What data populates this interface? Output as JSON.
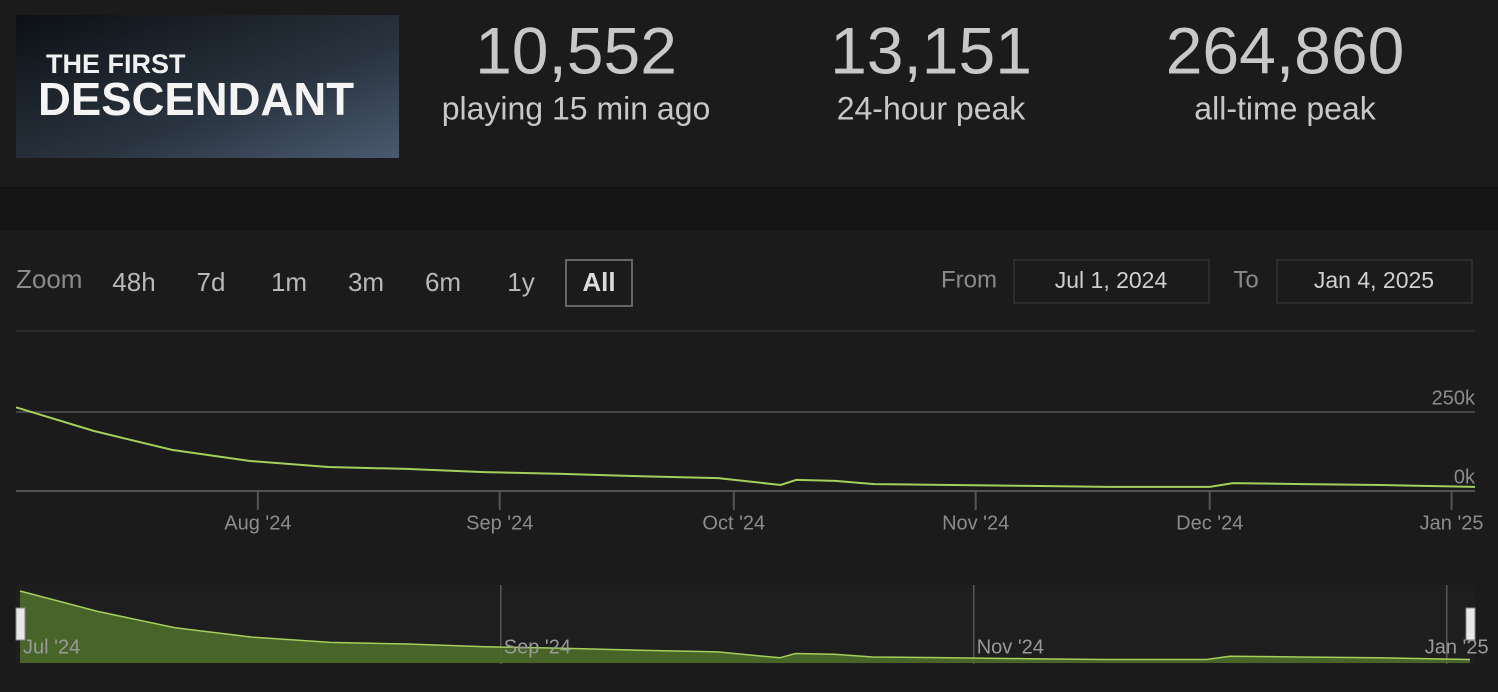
{
  "logo": {
    "line1": "THE FIRST",
    "line2": "DESCENDANT"
  },
  "stats": [
    {
      "value": "10,552",
      "label": "playing 15 min ago"
    },
    {
      "value": "13,151",
      "label": "24-hour peak"
    },
    {
      "value": "264,860",
      "label": "all-time peak"
    }
  ],
  "controls": {
    "zoom_label": "Zoom",
    "zoom_options": [
      "48h",
      "7d",
      "1m",
      "3m",
      "6m",
      "1y",
      "All"
    ],
    "zoom_selected": 6,
    "from_label": "From",
    "from_value": "Jul 1, 2024",
    "to_label": "To",
    "to_value": "Jan 4, 2025"
  },
  "chart_data": {
    "type": "line",
    "x": [
      0,
      10,
      20,
      30,
      40,
      50,
      60,
      70,
      80,
      90,
      98,
      100,
      105,
      110,
      120,
      130,
      140,
      150,
      153,
      156,
      165,
      175,
      187
    ],
    "values": [
      265000,
      190000,
      130000,
      95000,
      76000,
      70000,
      60000,
      54000,
      47000,
      41000,
      19000,
      35000,
      32000,
      22000,
      19000,
      16000,
      13000,
      13000,
      13000,
      25000,
      22000,
      19000,
      13000
    ],
    "color": "#a4d05a",
    "xlim": [
      0,
      187
    ],
    "xticks": [
      {
        "value": 31,
        "label": "Aug '24"
      },
      {
        "value": 62,
        "label": "Sep '24"
      },
      {
        "value": 92,
        "label": "Oct '24"
      },
      {
        "value": 123,
        "label": "Nov '24"
      },
      {
        "value": 153,
        "label": "Dec '24"
      },
      {
        "value": 184,
        "label": "Jan '25"
      }
    ],
    "navigator_xticks": [
      {
        "value": 0,
        "label": "Jul '24"
      },
      {
        "value": 62,
        "label": "Sep '24"
      },
      {
        "value": 123,
        "label": "Nov '24"
      },
      {
        "value": 184,
        "label": "Jan '25"
      }
    ],
    "ylim": [
      0,
      475000
    ],
    "yticks": [
      {
        "value": 0,
        "label": "0k"
      },
      {
        "value": 250000,
        "label": "250k"
      }
    ],
    "grid": true
  }
}
